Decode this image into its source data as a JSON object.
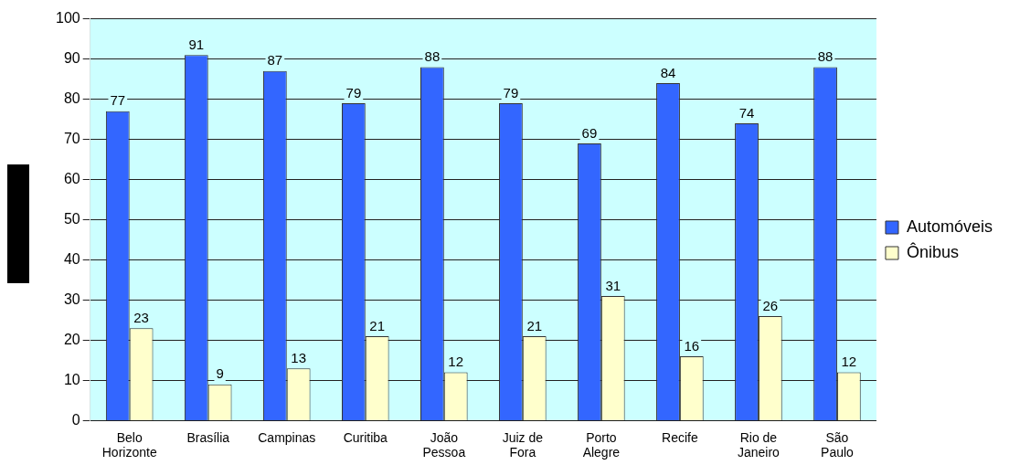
{
  "chart_data": {
    "type": "bar",
    "categories": [
      "Belo Horizonte",
      "Brasília",
      "Campinas",
      "Curitiba",
      "João Pessoa",
      "Juiz de Fora",
      "Porto Alegre",
      "Recife",
      "Rio de Janeiro",
      "São Paulo"
    ],
    "series": [
      {
        "name": "Automóveis",
        "color": "#3366ff",
        "values": [
          77,
          91,
          87,
          79,
          88,
          79,
          69,
          84,
          74,
          88
        ]
      },
      {
        "name": "Ônibus",
        "color": "#ffffcc",
        "values": [
          23,
          9,
          13,
          21,
          12,
          21,
          31,
          16,
          26,
          12
        ]
      }
    ],
    "ylim": [
      0,
      100
    ],
    "yticks": [
      0,
      10,
      20,
      30,
      40,
      50,
      60,
      70,
      80,
      90,
      100
    ],
    "grid": "y",
    "legend": "right",
    "data_labels": true
  }
}
